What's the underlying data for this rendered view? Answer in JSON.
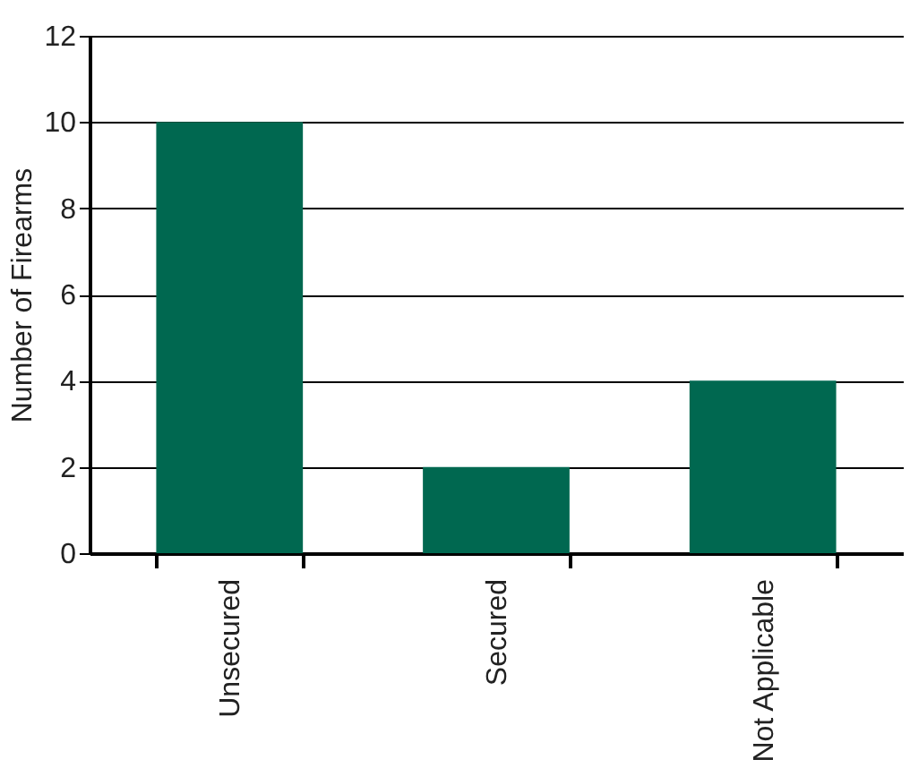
{
  "chart_data": {
    "type": "bar",
    "ylabel": "Number of Firearms",
    "categories": [
      "Unsecured",
      "Secured",
      "Not Applicable"
    ],
    "values": [
      10,
      2,
      4
    ],
    "color": "#006850",
    "ylim": [
      0,
      12
    ],
    "yticks": [
      0,
      2,
      4,
      6,
      8,
      10,
      12
    ],
    "grid": "y"
  }
}
